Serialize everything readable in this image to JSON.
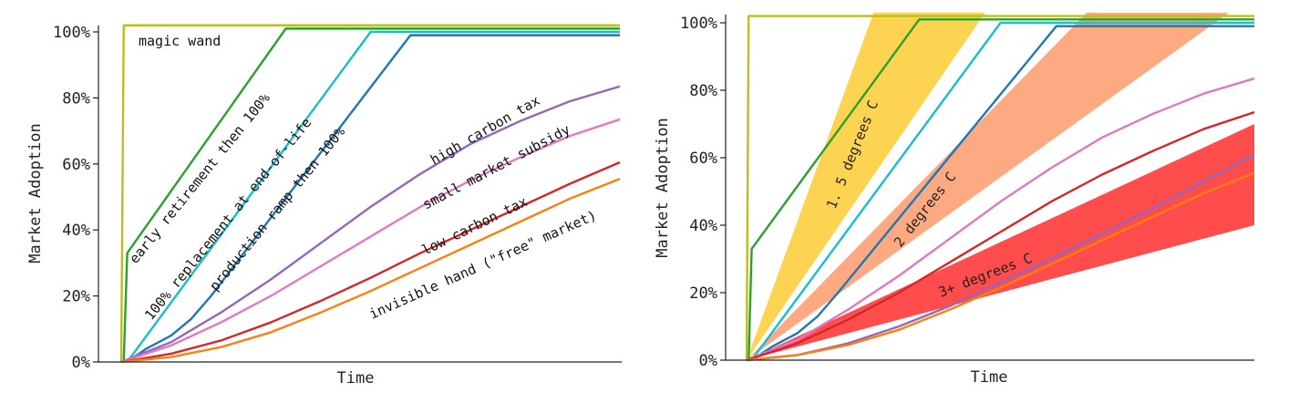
{
  "chart_data": [
    {
      "type": "line",
      "title": "",
      "xlabel": "Time",
      "ylabel": "Market Adoption",
      "ylim": [
        0,
        100
      ],
      "yticks": [
        "0%",
        "20%",
        "40%",
        "60%",
        "80%",
        "100%"
      ],
      "series": [
        {
          "name": "magic wand",
          "label": "magic wand",
          "color": "#bcbd22",
          "x": [
            0,
            0.005,
            1
          ],
          "y": [
            0,
            102,
            102
          ]
        },
        {
          "name": "early retirement then 100%",
          "label": "early retirement then 100%",
          "color": "#2ca02c",
          "x": [
            0.005,
            0.012,
            0.33,
            1
          ],
          "y": [
            0,
            33,
            101,
            101
          ]
        },
        {
          "name": "100% replacement at end-of-life",
          "label": "100% replacement at end-of-life",
          "color": "#17becf",
          "x": [
            0.012,
            0.5,
            1
          ],
          "y": [
            0,
            100,
            100
          ]
        },
        {
          "name": "production ramp then 100%",
          "label": "production ramp then 100%",
          "color": "#1f77b4",
          "x": [
            0.012,
            0.05,
            0.1,
            0.14,
            0.18,
            0.58,
            1
          ],
          "y": [
            0,
            4,
            8,
            13,
            20,
            99,
            99
          ]
        },
        {
          "name": "high carbon tax",
          "label": "high carbon tax",
          "color": "#9467bd",
          "x": [
            0,
            0.1,
            0.2,
            0.3,
            0.4,
            0.5,
            0.6,
            0.7,
            0.8,
            0.9,
            1
          ],
          "y": [
            0,
            6,
            15,
            25,
            36,
            47,
            57,
            66,
            73,
            79,
            83.5
          ]
        },
        {
          "name": "small market subsidy",
          "label": "small market subsidy",
          "color": "#e377c2",
          "x": [
            0,
            0.1,
            0.2,
            0.3,
            0.4,
            0.5,
            0.6,
            0.7,
            0.8,
            0.9,
            1
          ],
          "y": [
            0,
            5,
            12,
            20,
            29,
            38,
            47,
            55,
            62,
            68.5,
            73.5
          ]
        },
        {
          "name": "low carbon tax",
          "label": "low carbon tax",
          "color": "#d62728",
          "x": [
            0,
            0.1,
            0.2,
            0.3,
            0.4,
            0.5,
            0.6,
            0.7,
            0.8,
            0.9,
            1
          ],
          "y": [
            0,
            2.5,
            6.5,
            12,
            18.5,
            25.5,
            33,
            40,
            47,
            54,
            60.5
          ]
        },
        {
          "name": "invisible hand (\"free\" market)",
          "label": "invisible hand (\"free\" market)",
          "color": "#ff7f0e",
          "x": [
            0,
            0.1,
            0.2,
            0.3,
            0.4,
            0.5,
            0.6,
            0.7,
            0.8,
            0.9,
            1
          ],
          "y": [
            0,
            1.5,
            4.5,
            9,
            15,
            21.5,
            28.5,
            35.5,
            42.5,
            49.5,
            55.5
          ]
        }
      ]
    },
    {
      "type": "line",
      "title": "",
      "xlabel": "Time",
      "ylabel": "Market Adoption",
      "ylim": [
        0,
        100
      ],
      "yticks": [
        "0%",
        "20%",
        "40%",
        "60%",
        "80%",
        "100%"
      ],
      "series": [
        {
          "name": "magic wand",
          "color": "#bcbd22",
          "x": [
            0,
            0.004,
            1
          ],
          "y": [
            0,
            102,
            102
          ]
        },
        {
          "name": "early retirement then 100%",
          "color": "#2ca02c",
          "x": [
            0.004,
            0.01,
            0.34,
            1
          ],
          "y": [
            0,
            33,
            101,
            101
          ]
        },
        {
          "name": "100% replacement at end-of-life",
          "color": "#17becf",
          "x": [
            0.01,
            0.5,
            1
          ],
          "y": [
            0,
            100,
            100
          ]
        },
        {
          "name": "production ramp then 100%",
          "color": "#1f77b4",
          "x": [
            0.01,
            0.05,
            0.1,
            0.14,
            0.18,
            0.61,
            1
          ],
          "y": [
            0,
            4,
            8,
            13,
            20,
            99,
            99
          ]
        },
        {
          "name": "high carbon tax",
          "color": "#9467bd",
          "x": [
            0,
            0.1,
            0.2,
            0.3,
            0.4,
            0.5,
            0.6,
            0.7,
            0.8,
            0.9,
            1
          ],
          "y": [
            0,
            1.5,
            5,
            10,
            16,
            23,
            30,
            37.5,
            45,
            53,
            61
          ]
        },
        {
          "name": "small market subsidy",
          "color": "#e377c2",
          "x": [
            0,
            0.1,
            0.2,
            0.3,
            0.4,
            0.5,
            0.6,
            0.7,
            0.8,
            0.9,
            1
          ],
          "y": [
            0,
            6,
            15,
            25,
            36,
            47,
            57,
            66,
            73,
            79,
            83.5
          ]
        },
        {
          "name": "low carbon tax",
          "color": "#d62728",
          "x": [
            0,
            0.1,
            0.2,
            0.3,
            0.4,
            0.5,
            0.6,
            0.7,
            0.8,
            0.9,
            1
          ],
          "y": [
            0,
            5,
            12,
            20,
            29,
            38,
            47,
            55,
            62,
            68.5,
            73.5
          ]
        },
        {
          "name": "invisible hand (\"free\" market)",
          "color": "#ff7f0e",
          "x": [
            0,
            0.1,
            0.2,
            0.3,
            0.4,
            0.5,
            0.6,
            0.7,
            0.8,
            0.9,
            1
          ],
          "y": [
            0,
            1.5,
            4.5,
            9,
            15,
            21.5,
            28.5,
            35.5,
            42.5,
            49.5,
            55.5
          ]
        }
      ],
      "bands": [
        {
          "label": "1. 5 degrees C",
          "color": "#fdc827",
          "opacity": 0.8,
          "polygon": [
            [
              0,
              0
            ],
            [
              0.25,
              103
            ],
            [
              0.47,
              103
            ],
            [
              0,
              0
            ]
          ]
        },
        {
          "label": "2 degrees C",
          "color": "#fc8d59",
          "opacity": 0.75,
          "polygon": [
            [
              0,
              0
            ],
            [
              0.67,
              103
            ],
            [
              0.95,
              103
            ],
            [
              0,
              0
            ]
          ]
        },
        {
          "label": "3+ degrees C",
          "color": "#ff0000",
          "opacity": 0.7,
          "polygon": [
            [
              0,
              0
            ],
            [
              1,
              70
            ],
            [
              1,
              40
            ],
            [
              0,
              0
            ]
          ]
        }
      ]
    }
  ]
}
